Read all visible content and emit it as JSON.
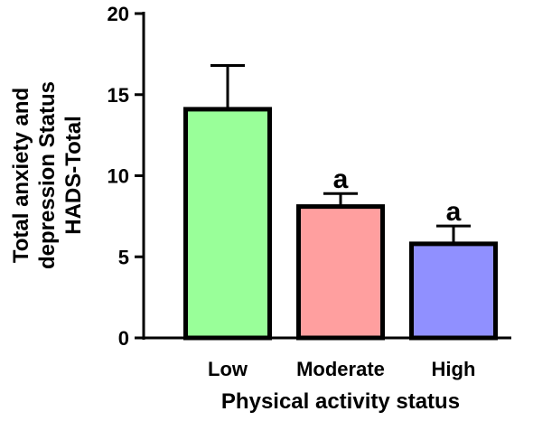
{
  "chart_data": {
    "type": "bar",
    "categories": [
      "Low",
      "Moderate",
      "High"
    ],
    "values": [
      14.1,
      8.1,
      5.8
    ],
    "error_upper": [
      16.8,
      8.9,
      6.9
    ],
    "significance_labels": [
      "",
      "a",
      "a"
    ],
    "colors": [
      "#99ff99",
      "#ff9f9f",
      "#9090ff"
    ],
    "xlabel": "Physical activity status",
    "ylabel_lines": [
      "Total anxiety and",
      "depression Status",
      "HADS-Total"
    ],
    "ylim": [
      0,
      20
    ],
    "yticks": [
      "0",
      "5",
      "10",
      "15",
      "20"
    ],
    "ytick_values": [
      0,
      5,
      10,
      15,
      20
    ],
    "grid": false,
    "legend": "none"
  }
}
